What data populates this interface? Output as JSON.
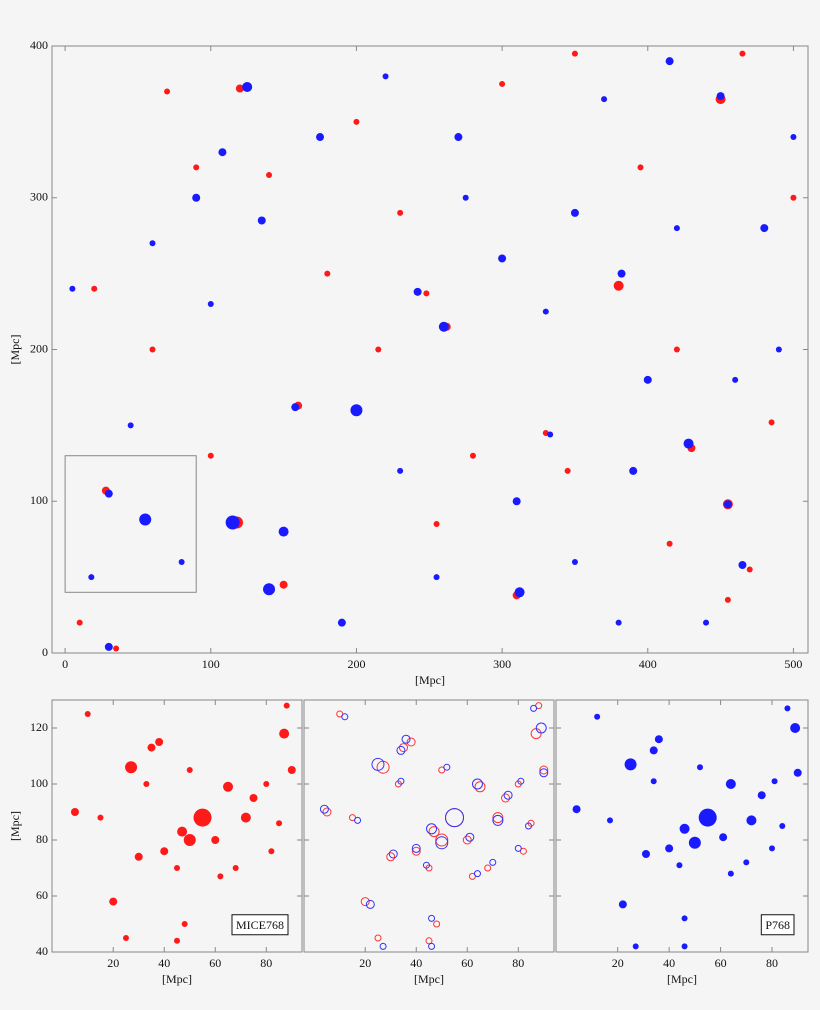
{
  "chart_data": [
    {
      "type": "scatter",
      "xlabel": "[Mpc]",
      "ylabel": "[Mpc]",
      "xlim": [
        -9,
        510
      ],
      "ylim": [
        0,
        400
      ],
      "xticks": [
        0,
        100,
        200,
        300,
        400,
        500
      ],
      "yticks": [
        0,
        100,
        200,
        300,
        400
      ],
      "zoom_box": {
        "x": [
          0,
          90
        ],
        "y": [
          40,
          130
        ]
      },
      "series": [
        {
          "color": "#ff1a1a",
          "marker": "filled",
          "x": [
            55,
            118,
            140,
            262,
            160,
            380,
            455,
            430,
            450,
            120,
            35,
            310,
            248,
            330,
            28,
            470,
            485,
            200,
            90,
            70,
            300,
            415,
            230,
            20,
            350,
            150,
            455,
            100,
            280,
            395,
            500,
            10,
            180,
            255,
            345,
            60,
            420,
            465,
            215,
            140
          ],
          "values": [
            88,
            86,
            42,
            215,
            163,
            242,
            98,
            135,
            365,
            372,
            3,
            38,
            237,
            145,
            107,
            55,
            152,
            350,
            320,
            370,
            375,
            72,
            290,
            240,
            395,
            45,
            35,
            130,
            130,
            320,
            300,
            20,
            250,
            85,
            120,
            200,
            200,
            395,
            200,
            315
          ],
          "sizes": [
            5,
            6,
            4,
            4,
            4,
            5,
            5,
            4,
            5,
            4,
            3,
            4,
            3,
            3,
            4,
            3,
            3,
            3,
            3,
            3,
            3,
            3,
            3,
            3,
            3,
            4,
            3,
            3,
            3,
            3,
            3,
            3,
            3,
            3,
            3,
            3,
            3,
            3,
            3,
            3
          ]
        },
        {
          "color": "#1a1aff",
          "marker": "filled",
          "x": [
            55,
            115,
            140,
            260,
            158,
            382,
            455,
            428,
            450,
            125,
            30,
            312,
            242,
            333,
            30,
            465,
            200,
            150,
            190,
            270,
            90,
            108,
            135,
            300,
            350,
            400,
            415,
            480,
            500,
            60,
            5,
            220,
            310,
            350,
            440,
            390,
            230,
            80,
            18,
            175,
            255,
            370,
            490,
            45,
            330,
            275,
            420,
            380,
            460,
            100
          ],
          "values": [
            88,
            86,
            42,
            215,
            162,
            250,
            98,
            138,
            367,
            373,
            4,
            40,
            238,
            144,
            105,
            58,
            160,
            80,
            20,
            340,
            300,
            330,
            285,
            260,
            290,
            180,
            390,
            280,
            340,
            270,
            240,
            380,
            100,
            60,
            20,
            120,
            120,
            60,
            50,
            340,
            50,
            365,
            200,
            150,
            225,
            300,
            280,
            20,
            180,
            230
          ],
          "sizes": [
            6,
            7,
            6,
            5,
            4,
            4,
            4,
            5,
            4,
            5,
            4,
            5,
            4,
            3,
            4,
            4,
            6,
            5,
            4,
            4,
            4,
            4,
            4,
            4,
            4,
            4,
            4,
            4,
            3,
            3,
            3,
            3,
            4,
            3,
            3,
            4,
            3,
            3,
            3,
            4,
            3,
            3,
            3,
            3,
            3,
            3,
            3,
            3,
            3,
            3
          ]
        }
      ]
    },
    {
      "type": "scatter",
      "xlabel": "[Mpc]",
      "ylabel": "[Mpc]",
      "annotation": "MICE768",
      "xlim": [
        -4,
        94
      ],
      "ylim": [
        40,
        130
      ],
      "xticks": [
        20,
        40,
        60,
        80
      ],
      "yticks": [
        40,
        60,
        80,
        100,
        120
      ],
      "series": [
        {
          "color": "#ff1a1a",
          "marker": "filled",
          "x": [
            55,
            27,
            47,
            50,
            65,
            72,
            5,
            87,
            90,
            38,
            30,
            20,
            40,
            35,
            60,
            15,
            75,
            80,
            45,
            25,
            68,
            10,
            88,
            50,
            85,
            48,
            33,
            45,
            62,
            82
          ],
          "values": [
            88,
            106,
            83,
            80,
            99,
            88,
            90,
            118,
            105,
            115,
            74,
            58,
            76,
            113,
            80,
            88,
            95,
            100,
            70,
            45,
            70,
            125,
            128,
            105,
            86,
            50,
            100,
            44,
            67,
            76
          ],
          "sizes": [
            9,
            6,
            5,
            6,
            5,
            5,
            4,
            5,
            4,
            4,
            4,
            4,
            4,
            4,
            4,
            3,
            4,
            3,
            3,
            3,
            3,
            3,
            3,
            3,
            3,
            3,
            3,
            3,
            3,
            3
          ]
        }
      ]
    },
    {
      "type": "scatter",
      "xlabel": "[Mpc]",
      "xlim": [
        -4,
        94
      ],
      "ylim": [
        40,
        130
      ],
      "xticks": [
        20,
        40,
        60,
        80
      ],
      "yticks": [
        40,
        60,
        80,
        100,
        120
      ],
      "series": [
        {
          "color": "#ff3333",
          "marker": "open",
          "x": [
            55,
            27,
            47,
            50,
            65,
            72,
            5,
            87,
            90,
            38,
            30,
            20,
            40,
            35,
            60,
            15,
            75,
            80,
            45,
            25,
            68,
            10,
            88,
            50,
            85,
            48,
            33,
            45,
            62,
            82
          ],
          "values": [
            88,
            106,
            83,
            80,
            99,
            88,
            90,
            118,
            105,
            115,
            74,
            58,
            76,
            113,
            80,
            88,
            95,
            100,
            70,
            45,
            70,
            125,
            128,
            105,
            86,
            50,
            100,
            44,
            67,
            76
          ],
          "sizes": [
            9,
            6,
            5,
            6,
            5,
            5,
            4,
            5,
            4,
            4,
            4,
            4,
            4,
            4,
            4,
            3,
            4,
            3,
            3,
            3,
            3,
            3,
            3,
            3,
            3,
            3,
            3,
            3,
            3,
            3
          ]
        },
        {
          "color": "#3333ff",
          "marker": "open",
          "x": [
            55,
            25,
            46,
            50,
            64,
            72,
            4,
            89,
            90,
            36,
            31,
            22,
            40,
            34,
            61,
            17,
            76,
            81,
            44,
            27,
            70,
            12,
            86,
            52,
            84,
            46,
            34,
            46,
            64,
            80
          ],
          "values": [
            88,
            107,
            84,
            79,
            100,
            87,
            91,
            120,
            104,
            116,
            75,
            57,
            77,
            112,
            81,
            87,
            96,
            101,
            71,
            42,
            72,
            124,
            127,
            106,
            85,
            52,
            101,
            42,
            68,
            77
          ],
          "sizes": [
            9,
            6,
            5,
            6,
            5,
            5,
            4,
            5,
            4,
            4,
            4,
            4,
            4,
            4,
            4,
            3,
            4,
            3,
            3,
            3,
            3,
            3,
            3,
            3,
            3,
            3,
            3,
            3,
            3,
            3
          ]
        }
      ]
    },
    {
      "type": "scatter",
      "xlabel": "[Mpc]",
      "annotation": "P768",
      "xlim": [
        -4,
        94
      ],
      "ylim": [
        40,
        130
      ],
      "xticks": [
        20,
        40,
        60,
        80
      ],
      "yticks": [
        40,
        60,
        80,
        100,
        120
      ],
      "series": [
        {
          "color": "#1a1aff",
          "marker": "filled",
          "x": [
            55,
            25,
            46,
            50,
            64,
            72,
            4,
            89,
            90,
            36,
            31,
            22,
            40,
            34,
            61,
            17,
            76,
            81,
            44,
            27,
            70,
            12,
            86,
            52,
            84,
            46,
            34,
            46,
            64,
            80
          ],
          "values": [
            88,
            107,
            84,
            79,
            100,
            87,
            91,
            120,
            104,
            116,
            75,
            57,
            77,
            112,
            81,
            87,
            96,
            101,
            71,
            42,
            72,
            124,
            127,
            106,
            85,
            52,
            101,
            42,
            68,
            77
          ],
          "sizes": [
            9,
            6,
            5,
            6,
            5,
            5,
            4,
            5,
            4,
            4,
            4,
            4,
            4,
            4,
            4,
            3,
            4,
            3,
            3,
            3,
            3,
            3,
            3,
            3,
            3,
            3,
            3,
            3,
            3,
            3
          ]
        }
      ]
    }
  ]
}
